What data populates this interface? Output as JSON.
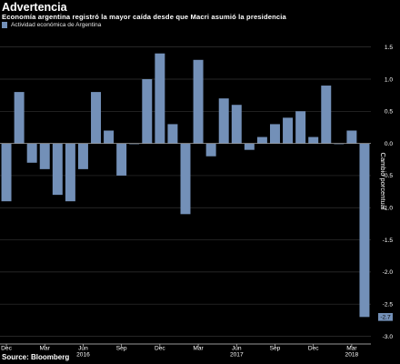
{
  "header": {
    "title": "Advertencia",
    "subtitle": "Economía argentina registró la mayor caída desde que Macri asumió la presidencia"
  },
  "legend": {
    "label": "Actividad económica de Argentina",
    "icon": "legend-swatch"
  },
  "footer": {
    "source": "Source: Bloomberg"
  },
  "colors": {
    "background": "#000000",
    "bar": "#7390b8",
    "grid": "#333333",
    "value_label_bg": "#7390b8"
  },
  "chart_data": {
    "type": "bar",
    "ylabel": "Cambio porcentual",
    "ylim": [
      -3.0,
      1.5
    ],
    "yticks": [
      1.5,
      1.0,
      0.5,
      0.0,
      -0.5,
      -1.0,
      -1.5,
      -2.0,
      -2.5,
      -3.0
    ],
    "ytick_labels": [
      "1.5",
      "1.0",
      "0.5",
      "0.0",
      "-0.5",
      "-1.0",
      "-1.5",
      "-2.0",
      "-2.5",
      "-3.0"
    ],
    "grid": true,
    "legend_position": "top-left",
    "categories": [
      "Dec 2015",
      "Jan 2016",
      "Feb 2016",
      "Mar 2016",
      "Apr 2016",
      "May 2016",
      "Jun 2016",
      "Jul 2016",
      "Aug 2016",
      "Sep 2016",
      "Oct 2016",
      "Nov 2016",
      "Dec 2016",
      "Jan 2017",
      "Feb 2017",
      "Mar 2017",
      "Apr 2017",
      "May 2017",
      "Jun 2017",
      "Jul 2017",
      "Aug 2017",
      "Sep 2017",
      "Oct 2017",
      "Nov 2017",
      "Dec 2017",
      "Jan 2018",
      "Feb 2018",
      "Mar 2018",
      "Apr 2018"
    ],
    "series": [
      {
        "values": [
          -0.9,
          0.8,
          -0.3,
          -0.4,
          -0.8,
          -0.9,
          -0.4,
          0.8,
          0.2,
          -0.5,
          0.0,
          1.0,
          1.4,
          0.3,
          -1.1,
          1.3,
          -0.2,
          0.7,
          0.6,
          -0.1,
          0.1,
          0.3,
          0.4,
          0.5,
          0.1,
          0.9,
          0.0,
          0.2,
          -2.7
        ]
      }
    ],
    "xtick_labels": [
      {
        "index": 0,
        "month": "Dec",
        "year": ""
      },
      {
        "index": 3,
        "month": "Mar",
        "year": ""
      },
      {
        "index": 6,
        "month": "Jun",
        "year": "2016"
      },
      {
        "index": 9,
        "month": "Sep",
        "year": ""
      },
      {
        "index": 12,
        "month": "Dec",
        "year": ""
      },
      {
        "index": 15,
        "month": "Mar",
        "year": ""
      },
      {
        "index": 18,
        "month": "Jun",
        "year": "2017"
      },
      {
        "index": 21,
        "month": "Sep",
        "year": ""
      },
      {
        "index": 24,
        "month": "Dec",
        "year": ""
      },
      {
        "index": 27,
        "month": "Mar",
        "year": "2018"
      }
    ],
    "last_value_label": "-2.7"
  }
}
